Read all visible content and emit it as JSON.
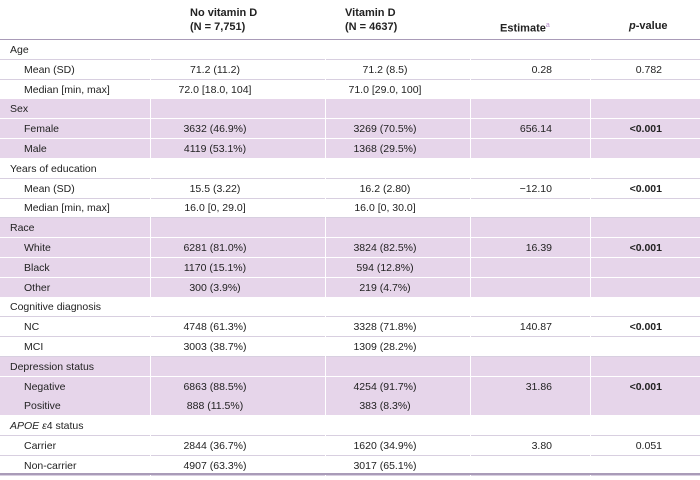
{
  "header": {
    "col_novitd_title": "No vitamin D",
    "col_novitd_n": "(N = 7,751)",
    "col_vitd_title": "Vitamin D",
    "col_vitd_n": "(N = 4637)",
    "col_estimate": "Estimate",
    "col_estimate_sup": "a",
    "col_pvalue": "p-value"
  },
  "rows": [
    {
      "type": "section",
      "label": "Age"
    },
    {
      "type": "sub",
      "label": "Mean (SD)",
      "novitd": "71.2 (11.2)",
      "vitd": "71.2 (8.5)",
      "estimate": "0.28",
      "p": "0.782",
      "p_bold": false
    },
    {
      "type": "sub",
      "label": "Median [min, max]",
      "novitd": "72.0 [18.0, 104]",
      "vitd": "71.0 [29.0, 100]",
      "estimate": "",
      "p": "",
      "p_bold": false
    },
    {
      "type": "section",
      "label": "Sex"
    },
    {
      "type": "sub",
      "label": "Female",
      "novitd": "3632 (46.9%)",
      "vitd": "3269 (70.5%)",
      "estimate": "656.14",
      "p": "<0.001",
      "p_bold": true
    },
    {
      "type": "sub",
      "label": "Male",
      "novitd": "4119 (53.1%)",
      "vitd": "1368 (29.5%)",
      "estimate": "",
      "p": "",
      "p_bold": false
    },
    {
      "type": "section",
      "label": "Years of education"
    },
    {
      "type": "sub",
      "label": "Mean (SD)",
      "novitd": "15.5 (3.22)",
      "vitd": "16.2 (2.80)",
      "estimate": "−12.10",
      "p": "<0.001",
      "p_bold": true
    },
    {
      "type": "sub",
      "label": "Median [min, max]",
      "novitd": "16.0 [0, 29.0]",
      "vitd": "16.0 [0, 30.0]",
      "estimate": "",
      "p": "",
      "p_bold": false
    },
    {
      "type": "section",
      "label": "Race"
    },
    {
      "type": "sub",
      "label": "White",
      "novitd": "6281 (81.0%)",
      "vitd": "3824 (82.5%)",
      "estimate": "16.39",
      "p": "<0.001",
      "p_bold": true
    },
    {
      "type": "sub",
      "label": "Black",
      "novitd": "1170 (15.1%)",
      "vitd": "594 (12.8%)",
      "estimate": "",
      "p": "",
      "p_bold": false
    },
    {
      "type": "sub",
      "label": "Other",
      "novitd": "300 (3.9%)",
      "vitd": "219 (4.7%)",
      "estimate": "",
      "p": "",
      "p_bold": false
    },
    {
      "type": "section",
      "label": "Cognitive diagnosis"
    },
    {
      "type": "sub",
      "label": "NC",
      "novitd": "4748 (61.3%)",
      "vitd": "3328 (71.8%)",
      "estimate": "140.87",
      "p": "<0.001",
      "p_bold": true
    },
    {
      "type": "sub",
      "label": "MCI",
      "novitd": "3003 (38.7%)",
      "vitd": "1309 (28.2%)",
      "estimate": "",
      "p": "",
      "p_bold": false
    },
    {
      "type": "section",
      "label": "Depression status"
    },
    {
      "type": "sub",
      "label": "Negative",
      "novitd": "6863 (88.5%)",
      "vitd": "4254 (91.7%)",
      "estimate": "31.86",
      "p": "<0.001",
      "p_bold": true
    },
    {
      "type": "sub",
      "label": "Positive",
      "novitd": "888 (11.5%)",
      "vitd": "383 (8.3%)",
      "estimate": "",
      "p": "",
      "p_bold": false
    },
    {
      "type": "section",
      "label": "APOE ε4 status",
      "italic_prefix": "APOE ε",
      "suffix": "4 status"
    },
    {
      "type": "sub",
      "label": "Carrier",
      "novitd": "2844 (36.7%)",
      "vitd": "1620 (34.9%)",
      "estimate": "3.80",
      "p": "0.051",
      "p_bold": false
    },
    {
      "type": "sub",
      "label": "Non-carrier",
      "novitd": "4907 (63.3%)",
      "vitd": "3017 (65.1%)",
      "estimate": "",
      "p": "",
      "p_bold": false
    }
  ],
  "colors": {
    "shade": "#e6d5ea",
    "rule": "#a99bb8",
    "superscript": "#b38bc7"
  }
}
